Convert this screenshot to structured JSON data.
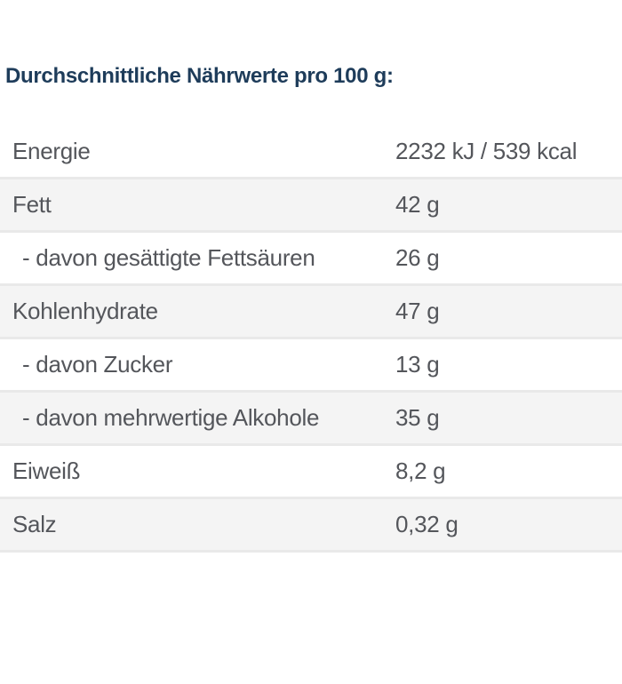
{
  "title": "Durchschnittliche Nährwerte pro 100 g:",
  "colors": {
    "title_text": "#1e3c5a",
    "row_text": "#54565b",
    "zebra_stripe": "#f4f4f4",
    "row_separator": "#e9e9e9",
    "background": "#ffffff"
  },
  "table": {
    "rows": [
      {
        "label": "Energie",
        "value": "2232 kJ / 539 kcal",
        "sub": false
      },
      {
        "label": "Fett",
        "value": "42 g",
        "sub": false
      },
      {
        "label": "- davon gesättigte Fettsäuren",
        "value": "26 g",
        "sub": true
      },
      {
        "label": "Kohlenhydrate",
        "value": "47 g",
        "sub": false
      },
      {
        "label": "- davon Zucker",
        "value": "13 g",
        "sub": true
      },
      {
        "label": "- davon mehrwertige Alkohole",
        "value": "35 g",
        "sub": true
      },
      {
        "label": "Eiweiß",
        "value": "8,2 g",
        "sub": false
      },
      {
        "label": "Salz",
        "value": "0,32 g",
        "sub": false
      }
    ]
  }
}
